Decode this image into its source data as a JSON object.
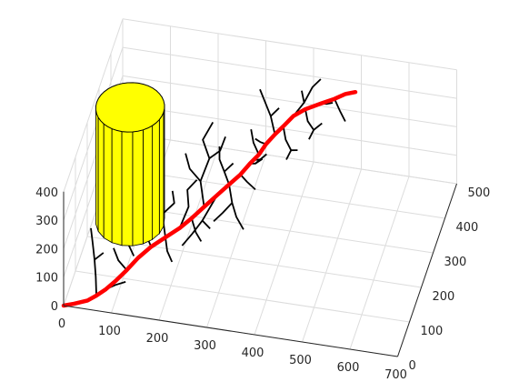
{
  "chart_data": {
    "type": "3d-line",
    "title": "",
    "xlabel": "",
    "ylabel": "",
    "zlabel": "",
    "grid": true,
    "box": "back-planes",
    "xlim": [
      0,
      700
    ],
    "ylim": [
      0,
      500
    ],
    "zlim": [
      0,
      400
    ],
    "xticks": [
      "0",
      "100",
      "200",
      "300",
      "400",
      "500",
      "600",
      "700"
    ],
    "yticks": [
      "0",
      "100",
      "200",
      "300",
      "400",
      "500"
    ],
    "zticks": [
      "0",
      "100",
      "200",
      "300",
      "400"
    ],
    "colors": {
      "main_path": "#ff0000",
      "branches": "#000000",
      "cylinder_fill": "#ffff00",
      "cylinder_edge": "#000000",
      "grid": "#dcdcdc",
      "axis": "#262626"
    },
    "cylinder": {
      "center_x": 75,
      "center_y": 260,
      "radius": 70,
      "z_range": [
        0,
        400
      ],
      "facets": 20
    },
    "main_path": [
      [
        0,
        0,
        0
      ],
      [
        20,
        8,
        2
      ],
      [
        45,
        20,
        5
      ],
      [
        60,
        35,
        8
      ],
      [
        75,
        55,
        10
      ],
      [
        90,
        80,
        14
      ],
      [
        105,
        110,
        18
      ],
      [
        120,
        145,
        22
      ],
      [
        140,
        175,
        30
      ],
      [
        165,
        195,
        45
      ],
      [
        190,
        215,
        60
      ],
      [
        210,
        235,
        75
      ],
      [
        230,
        260,
        90
      ],
      [
        250,
        290,
        100
      ],
      [
        270,
        310,
        118
      ],
      [
        290,
        325,
        140
      ],
      [
        305,
        345,
        158
      ],
      [
        320,
        360,
        175
      ],
      [
        330,
        380,
        190
      ],
      [
        345,
        395,
        210
      ],
      [
        360,
        405,
        230
      ],
      [
        378,
        418,
        255
      ],
      [
        400,
        430,
        270
      ],
      [
        430,
        445,
        280
      ],
      [
        455,
        455,
        290
      ],
      [
        475,
        465,
        300
      ],
      [
        495,
        470,
        306
      ]
    ],
    "branches": [
      [
        [
          110,
          150,
          20
        ],
        [
          90,
          165,
          55
        ],
        [
          70,
          150,
          80
        ],
        [
          55,
          170,
          95
        ]
      ],
      [
        [
          90,
          165,
          55
        ],
        [
          100,
          185,
          75
        ],
        [
          85,
          200,
          90
        ]
      ],
      [
        [
          140,
          175,
          30
        ],
        [
          120,
          200,
          50
        ],
        [
          110,
          230,
          60
        ],
        [
          90,
          250,
          75
        ]
      ],
      [
        [
          120,
          200,
          50
        ],
        [
          135,
          225,
          70
        ],
        [
          120,
          245,
          85
        ]
      ],
      [
        [
          165,
          195,
          45
        ],
        [
          150,
          230,
          80
        ],
        [
          135,
          255,
          105
        ],
        [
          115,
          270,
          120
        ]
      ],
      [
        [
          150,
          230,
          80
        ],
        [
          170,
          250,
          100
        ],
        [
          160,
          275,
          110
        ]
      ],
      [
        [
          190,
          215,
          60
        ],
        [
          200,
          250,
          95
        ],
        [
          190,
          280,
          115
        ],
        [
          205,
          300,
          130
        ]
      ],
      [
        [
          230,
          260,
          90
        ],
        [
          215,
          290,
          140
        ],
        [
          225,
          325,
          180
        ],
        [
          205,
          350,
          210
        ],
        [
          220,
          375,
          245
        ]
      ],
      [
        [
          215,
          290,
          140
        ],
        [
          190,
          300,
          165
        ],
        [
          175,
          325,
          185
        ]
      ],
      [
        [
          225,
          325,
          180
        ],
        [
          245,
          335,
          200
        ],
        [
          250,
          360,
          220
        ]
      ],
      [
        [
          270,
          310,
          118
        ],
        [
          285,
          275,
          100
        ],
        [
          300,
          250,
          85
        ],
        [
          320,
          230,
          70
        ]
      ],
      [
        [
          285,
          275,
          100
        ],
        [
          270,
          255,
          85
        ],
        [
          255,
          240,
          70
        ]
      ],
      [
        [
          290,
          325,
          140
        ],
        [
          310,
          300,
          150
        ],
        [
          330,
          290,
          140
        ]
      ],
      [
        [
          305,
          345,
          158
        ],
        [
          320,
          330,
          180
        ],
        [
          335,
          325,
          205
        ],
        [
          325,
          300,
          230
        ]
      ],
      [
        [
          320,
          330,
          180
        ],
        [
          340,
          345,
          200
        ]
      ],
      [
        [
          345,
          395,
          210
        ],
        [
          330,
          420,
          240
        ],
        [
          315,
          435,
          265
        ],
        [
          300,
          450,
          290
        ]
      ],
      [
        [
          330,
          420,
          240
        ],
        [
          345,
          430,
          260
        ]
      ],
      [
        [
          400,
          430,
          270
        ],
        [
          410,
          410,
          255
        ],
        [
          425,
          400,
          240
        ],
        [
          420,
          380,
          230
        ]
      ],
      [
        [
          425,
          400,
          240
        ],
        [
          440,
          410,
          255
        ]
      ],
      [
        [
          430,
          445,
          280
        ],
        [
          445,
          430,
          300
        ],
        [
          460,
          420,
          320
        ]
      ],
      [
        [
          360,
          405,
          230
        ],
        [
          370,
          385,
          210
        ],
        [
          385,
          370,
          195
        ],
        [
          380,
          350,
          185
        ]
      ],
      [
        [
          385,
          370,
          195
        ],
        [
          400,
          365,
          205
        ]
      ],
      [
        [
          378,
          418,
          255
        ],
        [
          395,
          440,
          280
        ],
        [
          405,
          470,
          300
        ],
        [
          420,
          480,
          320
        ]
      ],
      [
        [
          395,
          440,
          280
        ],
        [
          385,
          460,
          295
        ]
      ],
      [
        [
          250,
          290,
          100
        ],
        [
          230,
          245,
          60
        ],
        [
          215,
          220,
          40
        ],
        [
          200,
          195,
          25
        ]
      ],
      [
        [
          230,
          245,
          60
        ],
        [
          250,
          230,
          55
        ]
      ],
      [
        [
          60,
          35,
          8
        ],
        [
          50,
          70,
          30
        ],
        [
          40,
          100,
          50
        ],
        [
          30,
          125,
          75
        ],
        [
          20,
          150,
          95
        ]
      ],
      [
        [
          40,
          100,
          50
        ],
        [
          55,
          115,
          60
        ]
      ],
      [
        [
          75,
          55,
          10
        ],
        [
          95,
          55,
          30
        ],
        [
          115,
          60,
          40
        ]
      ],
      [
        [
          165,
          195,
          45
        ],
        [
          175,
          170,
          30
        ],
        [
          190,
          150,
          20
        ]
      ],
      [
        [
          455,
          455,
          290
        ],
        [
          470,
          440,
          270
        ],
        [
          485,
          425,
          255
        ]
      ],
      [
        [
          270,
          310,
          118
        ],
        [
          255,
          330,
          135
        ],
        [
          240,
          350,
          150
        ],
        [
          235,
          370,
          170
        ]
      ],
      [
        [
          255,
          330,
          135
        ],
        [
          270,
          345,
          150
        ]
      ],
      [
        [
          330,
          380,
          190
        ],
        [
          315,
          395,
          175
        ],
        [
          300,
          410,
          165
        ]
      ],
      [
        [
          210,
          235,
          75
        ],
        [
          225,
          210,
          60
        ],
        [
          240,
          195,
          50
        ]
      ],
      [
        [
          105,
          110,
          18
        ],
        [
          85,
          120,
          35
        ],
        [
          70,
          140,
          50
        ]
      ],
      [
        [
          320,
          360,
          175
        ],
        [
          305,
          375,
          195
        ],
        [
          295,
          395,
          215
        ]
      ]
    ]
  }
}
